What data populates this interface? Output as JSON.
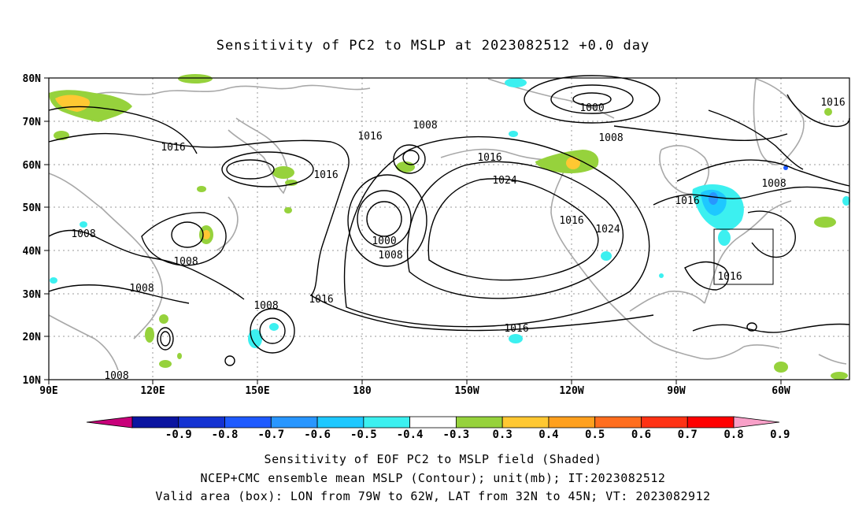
{
  "title": "Sensitivity of PC2 to MSLP at 2023082512 +0.0 day",
  "lat_labels": [
    "80N",
    "70N",
    "60N",
    "50N",
    "40N",
    "30N",
    "20N",
    "10N"
  ],
  "lon_labels": [
    "90E",
    "120E",
    "150E",
    "180",
    "150W",
    "120W",
    "90W",
    "60W"
  ],
  "contour_labels": [
    {
      "text": "1000",
      "kind": "contour-label"
    },
    {
      "text": "1016",
      "kind": "contour-label"
    },
    {
      "text": "1008",
      "kind": "contour-label"
    },
    {
      "text": "1016",
      "kind": "contour-label"
    },
    {
      "text": "1016",
      "kind": "contour-label"
    },
    {
      "text": "1008",
      "kind": "contour-label"
    },
    {
      "text": "1016",
      "kind": "contour-label"
    },
    {
      "text": "1016",
      "kind": "contour-label"
    },
    {
      "text": "1024",
      "kind": "contour-label"
    },
    {
      "text": "1008",
      "kind": "contour-label"
    },
    {
      "text": "1016",
      "kind": "contour-label"
    },
    {
      "text": "1008",
      "kind": "contour-label"
    },
    {
      "text": "1000",
      "kind": "contour-label"
    },
    {
      "text": "1008",
      "kind": "contour-label"
    },
    {
      "text": "1008",
      "kind": "contour-label"
    },
    {
      "text": "1008",
      "kind": "contour-label"
    },
    {
      "text": "1016",
      "kind": "contour-label"
    },
    {
      "text": "1008",
      "kind": "contour-label"
    },
    {
      "text": "1016",
      "kind": "contour-label"
    },
    {
      "text": "1016",
      "kind": "contour-label"
    },
    {
      "text": "1024",
      "kind": "contour-label"
    },
    {
      "text": "1016",
      "kind": "contour-label"
    },
    {
      "text": "1008",
      "kind": "contour-label"
    },
    {
      "text": "1016",
      "kind": "contour-label"
    }
  ],
  "colorbar": {
    "labels": [
      "-0.9",
      "-0.8",
      "-0.7",
      "-0.6",
      "-0.5",
      "-0.4",
      "-0.3",
      "0.3",
      "0.4",
      "0.5",
      "0.6",
      "0.7",
      "0.8",
      "0.9"
    ],
    "colors": [
      "#c8007a",
      "#0a14a0",
      "#1432d2",
      "#1e5aff",
      "#2896ff",
      "#1ec8ff",
      "#3cf0f0",
      "#ffffff",
      "#96d23c",
      "#ffc832",
      "#ffa01e",
      "#ff6e1e",
      "#ff3214",
      "#ff0000",
      "#f8a0c8"
    ]
  },
  "footer": {
    "line1": "Sensitivity of EOF PC2 to MSLP field (Shaded)",
    "line2": "NCEP+CMC ensemble mean MSLP (Contour); unit(mb); IT:2023082512",
    "line3": "Valid area (box): LON from 79W to 62W, LAT from 32N to 45N; VT: 2023082912"
  }
}
